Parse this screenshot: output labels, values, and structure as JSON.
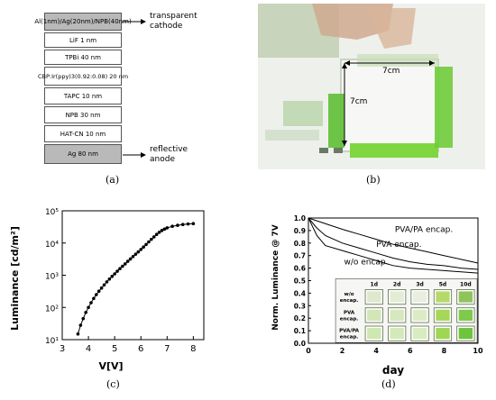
{
  "panel_a": {
    "layers": [
      "Al(1nm)/Ag(20nm)/NPB(40nm)",
      "LiF 1 nm",
      "TPBi 40 nm",
      "CBP:Ir(ppy)3(0.92:0.08) 20 nm",
      "TAPC 10 nm",
      "NPB 30 nm",
      "HAT-CN 10 nm",
      "Ag 80 nm"
    ],
    "top_label": "transparent cathode",
    "bottom_label": "reflective anode",
    "caption": "(a)"
  },
  "panel_b": {
    "width_label": "7cm",
    "height_label": "7cm",
    "caption": "(b)"
  },
  "panel_c": {
    "caption": "(c)",
    "chart_data": {
      "type": "line",
      "xlabel": "V[V]",
      "ylabel": "Luminance [cd/m²]",
      "x_ticks": [
        "3",
        "4",
        "5",
        "6",
        "7",
        "8"
      ],
      "y_ticks": [
        "10¹",
        "10²",
        "10³",
        "10⁴",
        "10⁵"
      ],
      "xlim": [
        3,
        8.4
      ],
      "ylim_log10": [
        1,
        5
      ],
      "y_scale": "log",
      "x": [
        3.6,
        3.7,
        3.8,
        3.9,
        4.0,
        4.1,
        4.2,
        4.3,
        4.4,
        4.5,
        4.6,
        4.7,
        4.8,
        4.9,
        5.0,
        5.1,
        5.2,
        5.3,
        5.4,
        5.5,
        5.6,
        5.7,
        5.8,
        5.9,
        6.0,
        6.1,
        6.2,
        6.3,
        6.4,
        6.5,
        6.6,
        6.7,
        6.8,
        6.9,
        7.0,
        7.2,
        7.4,
        7.6,
        7.8,
        8.0
      ],
      "y": [
        15,
        28,
        45,
        70,
        100,
        140,
        190,
        250,
        320,
        400,
        500,
        620,
        760,
        920,
        1100,
        1330,
        1600,
        1900,
        2250,
        2700,
        3200,
        3800,
        4500,
        5300,
        6300,
        7500,
        9000,
        10800,
        13000,
        15500,
        18500,
        21500,
        24500,
        27000,
        29500,
        33000,
        35500,
        37500,
        39000,
        40000
      ]
    }
  },
  "panel_d": {
    "caption": "(d)",
    "chart_data": {
      "type": "line",
      "xlabel": "day",
      "ylabel": "Norm. Luminance @ 7V",
      "x_ticks": [
        "0",
        "2",
        "4",
        "6",
        "8",
        "10"
      ],
      "y_ticks": [
        "0.0",
        "0.1",
        "0.2",
        "0.3",
        "0.4",
        "0.5",
        "0.6",
        "0.7",
        "0.8",
        "0.9",
        "1.0"
      ],
      "xlim": [
        0,
        10
      ],
      "ylim": [
        0,
        1
      ],
      "series": [
        {
          "name": "PVA/PA encap.",
          "x": [
            0,
            1,
            2,
            3,
            4,
            5,
            6,
            7,
            8,
            9,
            10
          ],
          "values": [
            1.0,
            0.955,
            0.91,
            0.87,
            0.83,
            0.79,
            0.76,
            0.73,
            0.7,
            0.67,
            0.64
          ]
        },
        {
          "name": "PVA encap.",
          "x": [
            0,
            0.5,
            1,
            2,
            3,
            4,
            5,
            6,
            7,
            8,
            9,
            10
          ],
          "values": [
            1.0,
            0.92,
            0.86,
            0.8,
            0.76,
            0.72,
            0.68,
            0.65,
            0.63,
            0.62,
            0.6,
            0.59
          ]
        },
        {
          "name": "w/o encap.",
          "x": [
            0,
            0.5,
            1,
            2,
            3,
            4,
            5,
            6,
            7,
            8,
            9,
            10
          ],
          "values": [
            1.0,
            0.86,
            0.78,
            0.74,
            0.7,
            0.66,
            0.62,
            0.6,
            0.59,
            0.58,
            0.57,
            0.56
          ]
        }
      ],
      "inset_days": [
        "1d",
        "2d",
        "3d",
        "5d",
        "10d"
      ],
      "inset_rows": [
        "w/o encap.",
        "PVA encap.",
        "PVA/PA encap."
      ]
    }
  },
  "colors": {
    "gray_layer": "#b9b9b9",
    "device_green": "#7fd640",
    "dark_green": "#4f9a2a"
  }
}
